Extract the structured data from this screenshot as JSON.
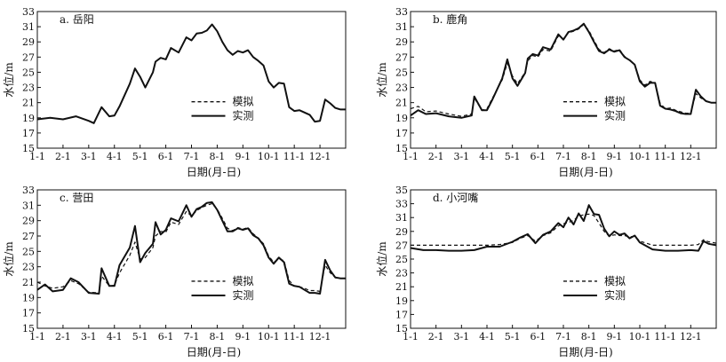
{
  "chart_data": [
    {
      "type": "line",
      "panel_label": "a. 岳阳",
      "xlabel": "日期(月-日)",
      "ylabel": "水位/m",
      "x_ticks": [
        "1-1",
        "2-1",
        "3-1",
        "4-1",
        "5-1",
        "6-1",
        "7-1",
        "8-1",
        "9-1",
        "10-1",
        "11-1",
        "12-1"
      ],
      "y_ticks": [
        15,
        17,
        19,
        21,
        23,
        25,
        27,
        29,
        31,
        33
      ],
      "ylim": [
        15,
        33
      ],
      "xlim": [
        0,
        12
      ],
      "legend": {
        "placement": "right-middle"
      },
      "series": [
        {
          "name": "模拟",
          "style": "dashed",
          "x": [
            0,
            0.5,
            1,
            1.5,
            2,
            2.2,
            2.5,
            2.8,
            3,
            3.2,
            3.6,
            3.8,
            4,
            4.2,
            4.5,
            4.6,
            4.8,
            5,
            5.2,
            5.5,
            5.8,
            6,
            6.2,
            6.4,
            6.6,
            6.8,
            7,
            7.2,
            7.4,
            7.6,
            7.8,
            8,
            8.2,
            8.4,
            8.6,
            8.8,
            9,
            9.2,
            9.4,
            9.6,
            9.8,
            10,
            10.2,
            10.4,
            10.6,
            10.8,
            11,
            11.2,
            11.4,
            11.6,
            11.8,
            12
          ],
          "y": [
            18.8,
            19,
            18.8,
            19.2,
            18.6,
            18.3,
            20.4,
            19.2,
            19.3,
            20.5,
            23.5,
            25.5,
            24.4,
            23,
            25,
            26.4,
            26.9,
            26.7,
            28.2,
            27.6,
            29.6,
            29.2,
            30.1,
            30.2,
            30.5,
            31.3,
            30.4,
            29,
            27.9,
            27.3,
            27.8,
            27.6,
            27.9,
            27,
            26.5,
            25.9,
            23.8,
            23,
            23.6,
            23.5,
            20.4,
            19.9,
            20,
            19.7,
            19.4,
            18.5,
            18.6,
            21.4,
            20.9,
            20.3,
            20.1,
            20.1
          ]
        },
        {
          "name": "实测",
          "style": "solid",
          "x": [
            0,
            0.5,
            1,
            1.5,
            2,
            2.2,
            2.5,
            2.8,
            3,
            3.2,
            3.6,
            3.8,
            4,
            4.2,
            4.5,
            4.6,
            4.8,
            5,
            5.2,
            5.5,
            5.8,
            6,
            6.2,
            6.4,
            6.6,
            6.8,
            7,
            7.2,
            7.4,
            7.6,
            7.8,
            8,
            8.2,
            8.4,
            8.6,
            8.8,
            9,
            9.2,
            9.4,
            9.6,
            9.8,
            10,
            10.2,
            10.4,
            10.6,
            10.8,
            11,
            11.2,
            11.4,
            11.6,
            11.8,
            12
          ],
          "y": [
            18.8,
            19,
            18.8,
            19.2,
            18.6,
            18.3,
            20.4,
            19.2,
            19.3,
            20.5,
            23.5,
            25.5,
            24.4,
            23,
            25,
            26.4,
            26.9,
            26.7,
            28.2,
            27.6,
            29.6,
            29.2,
            30.1,
            30.2,
            30.5,
            31.3,
            30.4,
            29,
            27.9,
            27.3,
            27.8,
            27.6,
            27.9,
            27,
            26.5,
            25.9,
            23.8,
            23,
            23.6,
            23.5,
            20.4,
            19.9,
            20,
            19.7,
            19.4,
            18.5,
            18.6,
            21.4,
            20.9,
            20.3,
            20.1,
            20.1
          ]
        }
      ]
    },
    {
      "type": "line",
      "panel_label": "b. 鹿角",
      "xlabel": "日期(月-日)",
      "ylabel": "水位/m",
      "x_ticks": [
        "1-1",
        "2-1",
        "3-1",
        "4-1",
        "5-1",
        "6-1",
        "7-1",
        "8-1",
        "9-1",
        "10-1",
        "11-1",
        "12-1"
      ],
      "y_ticks": [
        15,
        17,
        19,
        21,
        23,
        25,
        27,
        29,
        31,
        33
      ],
      "ylim": [
        15,
        33
      ],
      "xlim": [
        0,
        12
      ],
      "legend": {
        "placement": "right-middle"
      },
      "series": [
        {
          "name": "模拟",
          "style": "dashed",
          "x": [
            0,
            0.3,
            0.6,
            1,
            1.5,
            2,
            2.4,
            2.5,
            2.8,
            3,
            3.2,
            3.6,
            3.8,
            4,
            4.2,
            4.5,
            4.6,
            4.8,
            5,
            5.2,
            5.5,
            5.8,
            6,
            6.2,
            6.4,
            6.6,
            6.8,
            7,
            7.2,
            7.4,
            7.6,
            7.8,
            8,
            8.2,
            8.4,
            8.6,
            8.8,
            9,
            9.2,
            9.4,
            9.6,
            9.8,
            10,
            10.2,
            10.4,
            10.6,
            10.8,
            11,
            11.2,
            11.4,
            11.6,
            11.8,
            12
          ],
          "y": [
            20.2,
            20.5,
            19.8,
            19.9,
            19.5,
            19.2,
            19.5,
            21.6,
            20,
            20.2,
            21.5,
            24,
            26.2,
            24.5,
            23.5,
            25,
            26.5,
            27.2,
            27,
            28,
            27.8,
            29.8,
            29.4,
            30.2,
            30.4,
            30.7,
            31.3,
            30.5,
            29.2,
            28,
            27.6,
            28.1,
            27.8,
            28,
            27.1,
            26.6,
            26,
            24,
            23.3,
            23.8,
            23.6,
            20.9,
            20.2,
            20.3,
            20,
            19.8,
            19.6,
            19.6,
            22.2,
            21.6,
            21.2,
            21,
            21
          ]
        },
        {
          "name": "实测",
          "style": "solid",
          "x": [
            0,
            0.3,
            0.6,
            1,
            1.5,
            2,
            2.4,
            2.5,
            2.8,
            3,
            3.2,
            3.6,
            3.8,
            4,
            4.2,
            4.5,
            4.6,
            4.8,
            5,
            5.2,
            5.5,
            5.8,
            6,
            6.2,
            6.4,
            6.6,
            6.8,
            7,
            7.2,
            7.4,
            7.6,
            7.8,
            8,
            8.2,
            8.4,
            8.6,
            8.8,
            9,
            9.2,
            9.4,
            9.6,
            9.8,
            10,
            10.2,
            10.4,
            10.6,
            10.8,
            11,
            11.2,
            11.4,
            11.6,
            11.8,
            12
          ],
          "y": [
            19.3,
            20,
            19.5,
            19.6,
            19.2,
            19,
            19.3,
            21.8,
            20,
            20,
            21.3,
            24.2,
            26.7,
            24.2,
            23.2,
            24.9,
            26.8,
            27.4,
            27.2,
            28.3,
            28,
            30,
            29.3,
            30.3,
            30.5,
            30.8,
            31.4,
            30.3,
            29,
            27.8,
            27.5,
            28,
            27.7,
            27.9,
            27,
            26.6,
            26,
            23.8,
            23.1,
            23.6,
            23.6,
            20.6,
            20.2,
            20.1,
            19.9,
            19.6,
            19.5,
            19.5,
            22.7,
            21.8,
            21.2,
            21,
            21
          ]
        }
      ]
    },
    {
      "type": "line",
      "panel_label": "c. 营田",
      "xlabel": "日期(月-日)",
      "ylabel": "水位/m",
      "x_ticks": [
        "1-1",
        "2-1",
        "3-1",
        "4-1",
        "5-1",
        "6-1",
        "7-1",
        "8-1",
        "9-1",
        "10-1",
        "11-1",
        "12-1"
      ],
      "y_ticks": [
        15,
        17,
        19,
        21,
        23,
        25,
        27,
        29,
        31,
        33
      ],
      "ylim": [
        15,
        33
      ],
      "xlim": [
        0,
        12
      ],
      "legend": {
        "placement": "right-middle"
      },
      "series": [
        {
          "name": "模拟",
          "style": "dashed",
          "x": [
            0,
            0.3,
            0.6,
            1,
            1.3,
            1.6,
            2,
            2.4,
            2.5,
            2.8,
            3,
            3.2,
            3.6,
            3.8,
            4,
            4.2,
            4.5,
            4.6,
            4.8,
            5,
            5.2,
            5.5,
            5.8,
            6,
            6.2,
            6.4,
            6.6,
            6.8,
            7,
            7.2,
            7.4,
            7.6,
            7.8,
            8,
            8.2,
            8.4,
            8.6,
            8.8,
            9,
            9.2,
            9.4,
            9.6,
            9.8,
            10,
            10.2,
            10.4,
            10.6,
            10.8,
            11,
            11.2,
            11.4,
            11.6,
            11.8,
            12
          ],
          "y": [
            21,
            20.5,
            20.2,
            20.4,
            21.2,
            20.8,
            19.7,
            19.6,
            21.8,
            20.5,
            20.6,
            22.2,
            24.5,
            26.2,
            24,
            24.2,
            25.5,
            27,
            27.6,
            27.5,
            28.8,
            28.5,
            30.2,
            29.6,
            30.3,
            30.7,
            31,
            31.2,
            30.5,
            29.3,
            28,
            27.7,
            28.1,
            27.9,
            28.1,
            27.3,
            26.7,
            26,
            24.4,
            23.6,
            24,
            23.8,
            21.2,
            20.5,
            20.4,
            20.2,
            19.9,
            19.9,
            19.8,
            23.2,
            22.2,
            21.6,
            21.5,
            21.5
          ]
        },
        {
          "name": "实测",
          "style": "solid",
          "x": [
            0,
            0.3,
            0.6,
            1,
            1.3,
            1.6,
            2,
            2.4,
            2.5,
            2.8,
            3,
            3.2,
            3.6,
            3.8,
            4,
            4.2,
            4.5,
            4.6,
            4.8,
            5,
            5.2,
            5.5,
            5.8,
            6,
            6.2,
            6.4,
            6.6,
            6.8,
            7,
            7.2,
            7.4,
            7.6,
            7.8,
            8,
            8.2,
            8.4,
            8.6,
            8.8,
            9,
            9.2,
            9.4,
            9.6,
            9.8,
            10,
            10.2,
            10.4,
            10.6,
            10.8,
            11,
            11.2,
            11.4,
            11.6,
            11.8,
            12
          ],
          "y": [
            20,
            20.7,
            19.8,
            20,
            21.5,
            21,
            19.6,
            19.5,
            22.8,
            20.5,
            20.5,
            23.2,
            25.5,
            28.3,
            23.6,
            24.8,
            26,
            28.8,
            27.2,
            27.8,
            29.3,
            28.9,
            31,
            29.5,
            30.5,
            30.8,
            31.3,
            31.4,
            30.4,
            29,
            27.6,
            27.6,
            28,
            27.8,
            28,
            27.1,
            26.7,
            25.8,
            24.2,
            23.4,
            24.2,
            23.6,
            20.8,
            20.5,
            20.4,
            20,
            19.6,
            19.6,
            19.5,
            23.9,
            22.5,
            21.6,
            21.5,
            21.5
          ]
        }
      ]
    },
    {
      "type": "line",
      "panel_label": "d. 小河嘴",
      "xlabel": "日期(月-日)",
      "ylabel": "水位/m",
      "x_ticks": [
        "1-1",
        "2-1",
        "3-1",
        "4-1",
        "5-1",
        "6-1",
        "7-1",
        "8-1",
        "9-1",
        "10-1",
        "11-1",
        "12-1"
      ],
      "y_ticks": [
        15,
        17,
        19,
        21,
        23,
        25,
        27,
        29,
        31,
        33,
        35
      ],
      "ylim": [
        15,
        35
      ],
      "xlim": [
        0,
        12
      ],
      "legend": {
        "placement": "right-middle"
      },
      "series": [
        {
          "name": "模拟",
          "style": "dashed",
          "x": [
            0,
            0.5,
            1,
            1.5,
            2,
            2.5,
            3,
            3.5,
            4,
            4.3,
            4.6,
            4.9,
            5.2,
            5.5,
            5.8,
            6,
            6.2,
            6.4,
            6.6,
            6.8,
            7,
            7.2,
            7.4,
            7.6,
            7.8,
            8,
            8.2,
            8.4,
            8.6,
            8.8,
            9,
            9.5,
            10,
            10.5,
            11,
            11.3,
            11.5,
            11.7,
            12
          ],
          "y": [
            27,
            27,
            27,
            27,
            27,
            27,
            27,
            27.1,
            27.4,
            28,
            28.4,
            27.6,
            28.4,
            28.8,
            29.8,
            30.1,
            30.3,
            30.6,
            31.2,
            31.4,
            31.5,
            31.3,
            30.2,
            29,
            28.3,
            28.5,
            28.4,
            28.4,
            28.2,
            28.3,
            27.6,
            27,
            27,
            27,
            27,
            27.1,
            27.8,
            27.5,
            27.3
          ]
        },
        {
          "name": "实测",
          "style": "solid",
          "x": [
            0,
            0.5,
            1,
            1.5,
            2,
            2.5,
            3,
            3.5,
            4,
            4.3,
            4.6,
            4.9,
            5.2,
            5.5,
            5.8,
            6,
            6.2,
            6.4,
            6.6,
            6.8,
            7,
            7.2,
            7.4,
            7.6,
            7.8,
            8,
            8.2,
            8.4,
            8.6,
            8.8,
            9,
            9.5,
            10,
            10.5,
            11,
            11.3,
            11.5,
            11.7,
            12
          ],
          "y": [
            26.6,
            26.3,
            26.3,
            26.2,
            26.2,
            26.3,
            26.8,
            26.8,
            27.5,
            28.1,
            28.6,
            27.3,
            28.5,
            29,
            30.2,
            29.6,
            31,
            30,
            31.6,
            30.5,
            32.8,
            31.5,
            31.4,
            29.4,
            28.3,
            29,
            28.5,
            28.7,
            28,
            28.4,
            27.4,
            26.4,
            26.2,
            26.2,
            26.3,
            26.2,
            27.6,
            27.2,
            27
          ]
        }
      ]
    }
  ]
}
